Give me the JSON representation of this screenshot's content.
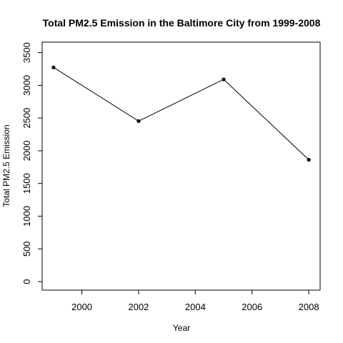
{
  "chart_data": {
    "type": "line",
    "title": "Total PM2.5 Emission in the Baltimore City from 1999-2008",
    "xlabel": "Year",
    "ylabel": "Total PM2.5 Emission",
    "x": [
      1999,
      2002,
      2005,
      2008
    ],
    "series": [
      {
        "values": [
          3274,
          2454,
          3091,
          1862
        ]
      }
    ],
    "xlim": [
      1998.6,
      2008.4
    ],
    "ylim": [
      -130,
      3660
    ],
    "xticks": [
      2000,
      2002,
      2004,
      2006,
      2008
    ],
    "yticks": [
      0,
      500,
      1000,
      1500,
      2000,
      2500,
      3000,
      3500
    ],
    "markers": "filled-circle",
    "grid": false,
    "legend": "none",
    "colors": {
      "line": "#000000",
      "point": "#000000",
      "frame": "#000000",
      "background": "#ffffff"
    }
  }
}
